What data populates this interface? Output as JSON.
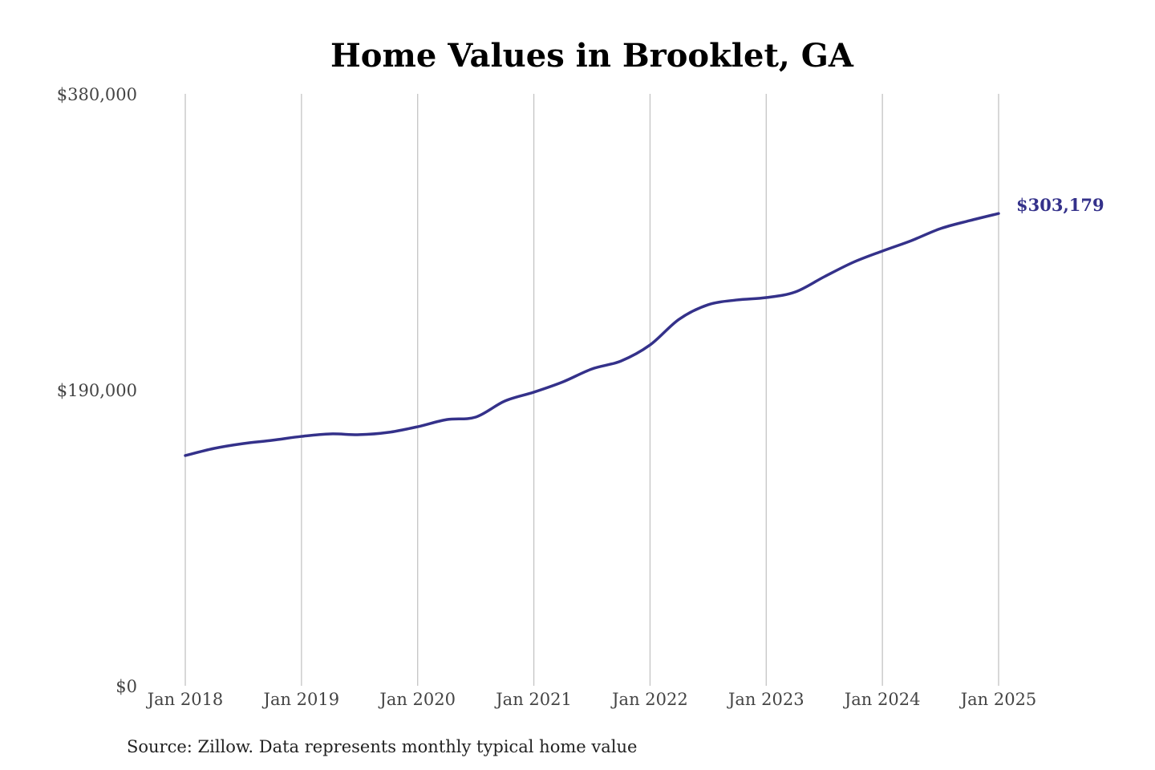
{
  "chart_data": {
    "type": "line",
    "title": "Home Values in Brooklet, GA",
    "xlabel": "",
    "ylabel": "",
    "source": "Source: Zillow. Data represents monthly typical home value",
    "ylim": [
      0,
      380000
    ],
    "y_ticks": [
      0,
      190000,
      380000
    ],
    "y_tick_labels": [
      "$0",
      "$190,000",
      "$380,000"
    ],
    "x_range": [
      2018,
      2025
    ],
    "x_ticks": [
      2018,
      2019,
      2020,
      2021,
      2022,
      2023,
      2024,
      2025
    ],
    "x_tick_labels": [
      "Jan 2018",
      "Jan 2019",
      "Jan 2020",
      "Jan 2021",
      "Jan 2022",
      "Jan 2023",
      "Jan 2024",
      "Jan 2025"
    ],
    "grid": "vertical",
    "line_color": "#34318a",
    "end_label": "$303,179",
    "series": [
      {
        "name": "Typical home value",
        "x": [
          2018,
          2018.25,
          2018.5,
          2018.75,
          2019,
          2019.25,
          2019.5,
          2019.75,
          2020,
          2020.25,
          2020.5,
          2020.75,
          2021,
          2021.25,
          2021.5,
          2021.75,
          2022,
          2022.25,
          2022.5,
          2022.75,
          2023,
          2023.25,
          2023.5,
          2023.75,
          2024,
          2024.25,
          2024.5,
          2024.75,
          2025
        ],
        "values": [
          147800,
          152400,
          155500,
          157600,
          160100,
          161700,
          161200,
          162700,
          166300,
          170900,
          172500,
          182800,
          188500,
          195100,
          203400,
          208500,
          218800,
          235300,
          244600,
          247700,
          249200,
          252800,
          262600,
          271900,
          279100,
          285800,
          293500,
          298600,
          303179
        ]
      }
    ]
  }
}
